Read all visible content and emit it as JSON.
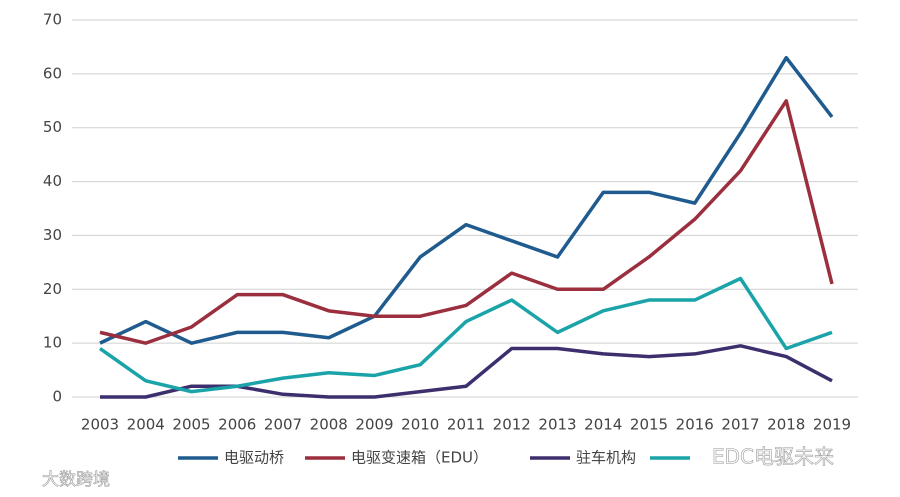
{
  "chart_data": {
    "type": "line",
    "categories": [
      "2003",
      "2004",
      "2005",
      "2006",
      "2007",
      "2008",
      "2009",
      "2010",
      "2011",
      "2012",
      "2013",
      "2014",
      "2015",
      "2016",
      "2017",
      "2018",
      "2019"
    ],
    "series": [
      {
        "name": "电驱动桥",
        "color": "#1f5b8e",
        "values": [
          10,
          14,
          10,
          12,
          12,
          11,
          15,
          26,
          32,
          29,
          26,
          38,
          38,
          36,
          49,
          63,
          52
        ]
      },
      {
        "name": "电驱变速箱（EDU）",
        "color": "#9b2f3e",
        "values": [
          12,
          10,
          13,
          19,
          19,
          16,
          15,
          15,
          17,
          23,
          20,
          20,
          26,
          33,
          42,
          55,
          21
        ]
      },
      {
        "name": "驻车机构",
        "color": "#3d2f6e",
        "values": [
          0,
          0,
          2,
          2,
          0.5,
          0,
          0,
          1,
          2,
          9,
          9,
          8,
          7.5,
          8,
          9.5,
          7.5,
          3
        ]
      },
      {
        "color": "#1aa3a8",
        "values": [
          9,
          3,
          1,
          2,
          3.5,
          4.5,
          4,
          6,
          14,
          18,
          12,
          16,
          18,
          18,
          22,
          9,
          12
        ]
      }
    ],
    "ylim": [
      0,
      70
    ],
    "yticks": [
      0,
      10,
      20,
      30,
      40,
      50,
      60,
      70
    ],
    "grid": true,
    "watermarks": [
      "EDC电驱未来",
      "大数跨境"
    ]
  }
}
